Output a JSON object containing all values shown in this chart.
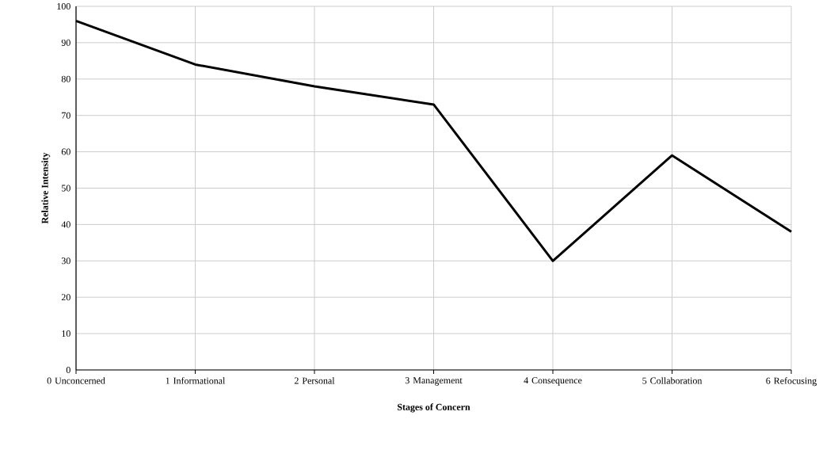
{
  "chart_data": {
    "type": "line",
    "xlabel": "Stages of Concern",
    "ylabel": "Relative Intensity",
    "categories": [
      "0 Unconcerned",
      "1 Informational",
      "2 Personal",
      "3 Management",
      "4 Consequence",
      "5 Collaboration",
      "6 Refocusing"
    ],
    "values": [
      96,
      84,
      78,
      73,
      30,
      59,
      38
    ],
    "color": "#000000",
    "ylim": [
      0,
      100
    ],
    "yticks": [
      0,
      10,
      20,
      30,
      40,
      50,
      60,
      70,
      80,
      90,
      100
    ],
    "grid": true,
    "marker": "none",
    "line_style": "solid"
  }
}
